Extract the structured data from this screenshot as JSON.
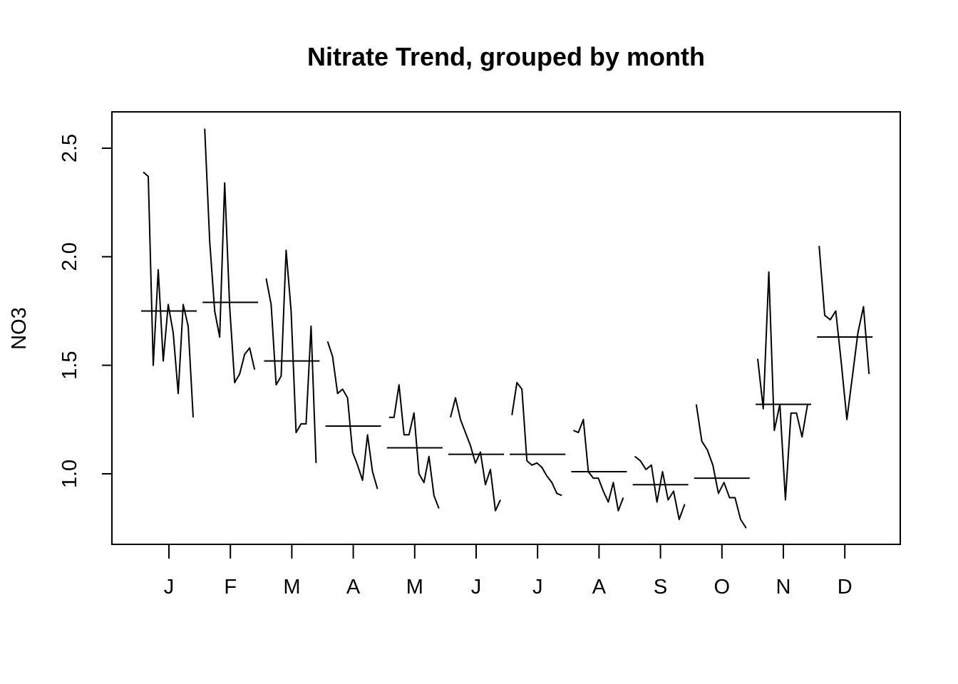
{
  "chart_data": {
    "type": "line",
    "title": "Nitrate Trend, grouped by month",
    "xlabel": "",
    "ylabel": "NO3",
    "ylim": [
      0.74,
      2.6
    ],
    "y_ticks": [
      "1.0",
      "1.5",
      "2.0",
      "2.5"
    ],
    "y_tick_values": [
      1.0,
      1.5,
      2.0,
      2.5
    ],
    "grid": false,
    "legend": "none",
    "categories": [
      "J",
      "F",
      "M",
      "A",
      "M",
      "J",
      "J",
      "A",
      "S",
      "O",
      "N",
      "D"
    ],
    "months": [
      {
        "label": "J",
        "mean": 1.75,
        "values": [
          2.39,
          2.37,
          1.5,
          1.94,
          1.52,
          1.78,
          1.65,
          1.37,
          1.78,
          1.68,
          1.26
        ]
      },
      {
        "label": "F",
        "mean": 1.79,
        "values": [
          2.59,
          2.07,
          1.75,
          1.63,
          2.34,
          1.77,
          1.42,
          1.46,
          1.55,
          1.58,
          1.48
        ]
      },
      {
        "label": "M",
        "mean": 1.52,
        "values": [
          1.9,
          1.78,
          1.41,
          1.45,
          2.03,
          1.75,
          1.19,
          1.23,
          1.23,
          1.68,
          1.05
        ]
      },
      {
        "label": "A",
        "mean": 1.22,
        "values": [
          1.61,
          1.54,
          1.37,
          1.39,
          1.35,
          1.1,
          1.04,
          0.97,
          1.18,
          1.01,
          0.93
        ]
      },
      {
        "label": "M",
        "mean": 1.12,
        "values": [
          1.26,
          1.26,
          1.41,
          1.18,
          1.18,
          1.28,
          1.0,
          0.96,
          1.08,
          0.9,
          0.84
        ]
      },
      {
        "label": "J",
        "mean": 1.09,
        "values": [
          1.26,
          1.35,
          1.25,
          1.19,
          1.13,
          1.05,
          1.1,
          0.95,
          1.02,
          0.83,
          0.88
        ]
      },
      {
        "label": "J",
        "mean": 1.09,
        "values": [
          1.27,
          1.42,
          1.39,
          1.06,
          1.04,
          1.05,
          1.03,
          0.99,
          0.96,
          0.91,
          0.9
        ]
      },
      {
        "label": "A",
        "mean": 1.01,
        "values": [
          1.2,
          1.19,
          1.25,
          1.01,
          0.98,
          0.98,
          0.92,
          0.87,
          0.96,
          0.83,
          0.89
        ]
      },
      {
        "label": "S",
        "mean": 0.95,
        "values": [
          1.08,
          1.06,
          1.02,
          1.04,
          0.87,
          1.01,
          0.88,
          0.92,
          0.79,
          0.86
        ]
      },
      {
        "label": "O",
        "mean": 0.98,
        "values": [
          1.32,
          1.15,
          1.11,
          1.04,
          0.91,
          0.96,
          0.89,
          0.89,
          0.79,
          0.75
        ]
      },
      {
        "label": "N",
        "mean": 1.32,
        "values": [
          1.53,
          1.3,
          1.93,
          1.2,
          1.32,
          0.88,
          1.28,
          1.28,
          1.17,
          1.32
        ]
      },
      {
        "label": "D",
        "mean": 1.63,
        "values": [
          2.05,
          1.73,
          1.71,
          1.75,
          1.51,
          1.25,
          1.45,
          1.65,
          1.77,
          1.46
        ]
      }
    ]
  }
}
